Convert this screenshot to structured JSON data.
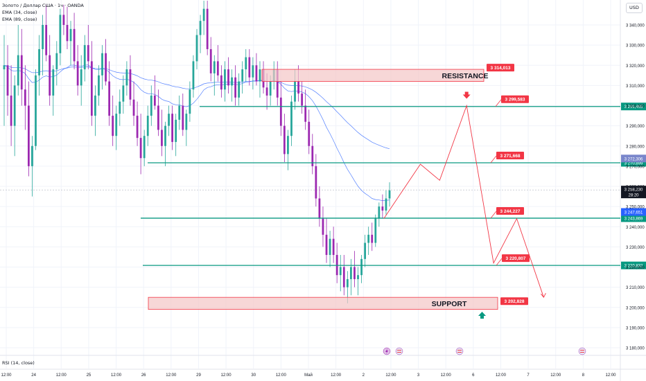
{
  "legend": {
    "symbol": "Золото / Доллар США · 1ч · OANDA",
    "ema34": "EMA (34, close)",
    "ema89": "EMA (89, close)"
  },
  "currency_button": "USD",
  "rsi_label": "RSI (14, close)",
  "chart_data": {
    "type": "candlestick",
    "y_axis": {
      "ticks": [
        3180,
        3190,
        3200,
        3210,
        3220,
        3230,
        3240,
        3250,
        3260,
        3270,
        3280,
        3290,
        3300,
        3310,
        3320,
        3330,
        3340
      ],
      "tick_labels": [
        "3 180,000",
        "3 190,000",
        "3 200,000",
        "3 210,000",
        "3 220,000",
        "3 230,000",
        "3 240,000",
        "3 250,000",
        "3 260,000",
        "3 270,000",
        "3 280,000",
        "3 290,000",
        "3 300,000",
        "3 310,000",
        "3 320,000",
        "3 330,000",
        "3 340,000"
      ]
    },
    "x_axis": {
      "labels": [
        "12:00",
        "24",
        "12:00",
        "25",
        "12:00",
        "26",
        "12:00",
        "29",
        "12:00",
        "30",
        "12:00",
        "Май",
        "12:00",
        "2",
        "12:00",
        "3",
        "12:00",
        "6",
        "12:00",
        "7",
        "12:00",
        "8",
        "12:00"
      ]
    },
    "levels": [
      {
        "price": 3299.583,
        "label": "3 299,583",
        "axis_label": "3 299,465"
      },
      {
        "price": 3271.668,
        "label": "3 271,668",
        "axis_label": "3 270,899"
      },
      {
        "price": 3244.227,
        "label": "3 244,227",
        "axis_label": "3 243,869"
      },
      {
        "price": 3220.807,
        "label": "3 220,807",
        "axis_label": "3 220,832"
      }
    ],
    "zones": [
      {
        "name": "RESISTANCE",
        "top": 3318,
        "bottom": 3312,
        "label": "3 314,013"
      },
      {
        "name": "SUPPORT",
        "top": 3205,
        "bottom": 3199,
        "label": "3 202,828"
      }
    ],
    "current_price": {
      "value": "3 258,230",
      "countdown": "28:20"
    },
    "ema34_axis": "3 247,651",
    "ema89_axis": "3 272,306",
    "colors": {
      "up": "#26a69a",
      "down": "#9c27b0",
      "level": "#089981",
      "zone_fill": "#f3c6c6",
      "zone_border": "#f23645",
      "label_bg": "#f23645",
      "ema": "#2962ff",
      "path": "#f23645",
      "level_axis_bg": "#089981",
      "ema34_axis_bg": "#2962ff",
      "ema89_axis_bg": "#7986cb"
    },
    "candles": [
      {
        "o": 3318,
        "h": 3335,
        "l": 3290,
        "c": 3320
      },
      {
        "o": 3320,
        "h": 3330,
        "l": 3295,
        "c": 3305
      },
      {
        "o": 3305,
        "h": 3320,
        "l": 3280,
        "c": 3290
      },
      {
        "o": 3290,
        "h": 3315,
        "l": 3275,
        "c": 3310
      },
      {
        "o": 3310,
        "h": 3340,
        "l": 3305,
        "c": 3325
      },
      {
        "o": 3325,
        "h": 3338,
        "l": 3300,
        "c": 3308
      },
      {
        "o": 3308,
        "h": 3320,
        "l": 3288,
        "c": 3300
      },
      {
        "o": 3300,
        "h": 3312,
        "l": 3265,
        "c": 3270
      },
      {
        "o": 3270,
        "h": 3285,
        "l": 3255,
        "c": 3280
      },
      {
        "o": 3280,
        "h": 3318,
        "l": 3278,
        "c": 3315
      },
      {
        "o": 3315,
        "h": 3335,
        "l": 3305,
        "c": 3328
      },
      {
        "o": 3328,
        "h": 3345,
        "l": 3315,
        "c": 3340
      },
      {
        "o": 3340,
        "h": 3350,
        "l": 3322,
        "c": 3325
      },
      {
        "o": 3325,
        "h": 3335,
        "l": 3300,
        "c": 3305
      },
      {
        "o": 3305,
        "h": 3320,
        "l": 3295,
        "c": 3318
      },
      {
        "o": 3318,
        "h": 3332,
        "l": 3310,
        "c": 3326
      },
      {
        "o": 3326,
        "h": 3348,
        "l": 3320,
        "c": 3345
      },
      {
        "o": 3345,
        "h": 3350,
        "l": 3335,
        "c": 3340
      },
      {
        "o": 3340,
        "h": 3349,
        "l": 3328,
        "c": 3332
      },
      {
        "o": 3332,
        "h": 3342,
        "l": 3320,
        "c": 3338
      },
      {
        "o": 3338,
        "h": 3346,
        "l": 3318,
        "c": 3322
      },
      {
        "o": 3322,
        "h": 3330,
        "l": 3305,
        "c": 3310
      },
      {
        "o": 3310,
        "h": 3325,
        "l": 3300,
        "c": 3318
      },
      {
        "o": 3318,
        "h": 3335,
        "l": 3312,
        "c": 3330
      },
      {
        "o": 3330,
        "h": 3340,
        "l": 3318,
        "c": 3322
      },
      {
        "o": 3322,
        "h": 3332,
        "l": 3290,
        "c": 3295
      },
      {
        "o": 3295,
        "h": 3310,
        "l": 3285,
        "c": 3305
      },
      {
        "o": 3305,
        "h": 3320,
        "l": 3300,
        "c": 3315
      },
      {
        "o": 3315,
        "h": 3330,
        "l": 3308,
        "c": 3326
      },
      {
        "o": 3326,
        "h": 3333,
        "l": 3310,
        "c": 3312
      },
      {
        "o": 3312,
        "h": 3322,
        "l": 3290,
        "c": 3295
      },
      {
        "o": 3295,
        "h": 3305,
        "l": 3280,
        "c": 3285
      },
      {
        "o": 3285,
        "h": 3300,
        "l": 3278,
        "c": 3296
      },
      {
        "o": 3296,
        "h": 3308,
        "l": 3290,
        "c": 3302
      },
      {
        "o": 3302,
        "h": 3315,
        "l": 3296,
        "c": 3310
      },
      {
        "o": 3310,
        "h": 3322,
        "l": 3305,
        "c": 3318
      },
      {
        "o": 3318,
        "h": 3325,
        "l": 3300,
        "c": 3303
      },
      {
        "o": 3303,
        "h": 3312,
        "l": 3290,
        "c": 3295
      },
      {
        "o": 3295,
        "h": 3302,
        "l": 3280,
        "c": 3284
      },
      {
        "o": 3284,
        "h": 3296,
        "l": 3266,
        "c": 3274
      },
      {
        "o": 3274,
        "h": 3288,
        "l": 3270,
        "c": 3285
      },
      {
        "o": 3285,
        "h": 3300,
        "l": 3280,
        "c": 3295
      },
      {
        "o": 3295,
        "h": 3310,
        "l": 3290,
        "c": 3305
      },
      {
        "o": 3305,
        "h": 3315,
        "l": 3298,
        "c": 3300
      },
      {
        "o": 3300,
        "h": 3308,
        "l": 3285,
        "c": 3288
      },
      {
        "o": 3288,
        "h": 3298,
        "l": 3275,
        "c": 3280
      },
      {
        "o": 3280,
        "h": 3292,
        "l": 3270,
        "c": 3290
      },
      {
        "o": 3290,
        "h": 3300,
        "l": 3285,
        "c": 3296
      },
      {
        "o": 3296,
        "h": 3300,
        "l": 3278,
        "c": 3282
      },
      {
        "o": 3282,
        "h": 3296,
        "l": 3275,
        "c": 3293
      },
      {
        "o": 3293,
        "h": 3305,
        "l": 3288,
        "c": 3300
      },
      {
        "o": 3300,
        "h": 3306,
        "l": 3285,
        "c": 3288
      },
      {
        "o": 3288,
        "h": 3298,
        "l": 3280,
        "c": 3296
      },
      {
        "o": 3296,
        "h": 3312,
        "l": 3292,
        "c": 3308
      },
      {
        "o": 3308,
        "h": 3325,
        "l": 3304,
        "c": 3322
      },
      {
        "o": 3322,
        "h": 3338,
        "l": 3318,
        "c": 3335
      },
      {
        "o": 3335,
        "h": 3345,
        "l": 3326,
        "c": 3342
      },
      {
        "o": 3342,
        "h": 3352,
        "l": 3335,
        "c": 3348
      },
      {
        "o": 3348,
        "h": 3352,
        "l": 3325,
        "c": 3328
      },
      {
        "o": 3328,
        "h": 3334,
        "l": 3312,
        "c": 3316
      },
      {
        "o": 3316,
        "h": 3325,
        "l": 3305,
        "c": 3322
      },
      {
        "o": 3322,
        "h": 3330,
        "l": 3312,
        "c": 3315
      },
      {
        "o": 3315,
        "h": 3320,
        "l": 3304,
        "c": 3308
      },
      {
        "o": 3308,
        "h": 3322,
        "l": 3302,
        "c": 3318
      },
      {
        "o": 3318,
        "h": 3324,
        "l": 3306,
        "c": 3310
      },
      {
        "o": 3310,
        "h": 3318,
        "l": 3302,
        "c": 3314
      },
      {
        "o": 3314,
        "h": 3320,
        "l": 3300,
        "c": 3304
      },
      {
        "o": 3304,
        "h": 3316,
        "l": 3300,
        "c": 3312
      },
      {
        "o": 3312,
        "h": 3322,
        "l": 3306,
        "c": 3318
      },
      {
        "o": 3318,
        "h": 3328,
        "l": 3312,
        "c": 3324
      },
      {
        "o": 3324,
        "h": 3328,
        "l": 3310,
        "c": 3314
      },
      {
        "o": 3314,
        "h": 3324,
        "l": 3308,
        "c": 3320
      },
      {
        "o": 3320,
        "h": 3326,
        "l": 3310,
        "c": 3312
      },
      {
        "o": 3312,
        "h": 3322,
        "l": 3304,
        "c": 3318
      },
      {
        "o": 3318,
        "h": 3322,
        "l": 3306,
        "c": 3309
      },
      {
        "o": 3309,
        "h": 3316,
        "l": 3298,
        "c": 3305
      },
      {
        "o": 3305,
        "h": 3315,
        "l": 3300,
        "c": 3312
      },
      {
        "o": 3312,
        "h": 3322,
        "l": 3308,
        "c": 3318
      },
      {
        "o": 3318,
        "h": 3322,
        "l": 3300,
        "c": 3304
      },
      {
        "o": 3304,
        "h": 3312,
        "l": 3285,
        "c": 3290
      },
      {
        "o": 3290,
        "h": 3296,
        "l": 3272,
        "c": 3276
      },
      {
        "o": 3276,
        "h": 3288,
        "l": 3268,
        "c": 3285
      },
      {
        "o": 3285,
        "h": 3305,
        "l": 3280,
        "c": 3302
      },
      {
        "o": 3302,
        "h": 3318,
        "l": 3298,
        "c": 3312
      },
      {
        "o": 3312,
        "h": 3320,
        "l": 3302,
        "c": 3306
      },
      {
        "o": 3306,
        "h": 3312,
        "l": 3296,
        "c": 3300
      },
      {
        "o": 3300,
        "h": 3308,
        "l": 3288,
        "c": 3292
      },
      {
        "o": 3292,
        "h": 3298,
        "l": 3276,
        "c": 3280
      },
      {
        "o": 3280,
        "h": 3286,
        "l": 3266,
        "c": 3270
      },
      {
        "o": 3270,
        "h": 3276,
        "l": 3250,
        "c": 3254
      },
      {
        "o": 3254,
        "h": 3260,
        "l": 3240,
        "c": 3244
      },
      {
        "o": 3244,
        "h": 3250,
        "l": 3230,
        "c": 3236
      },
      {
        "o": 3236,
        "h": 3244,
        "l": 3222,
        "c": 3226
      },
      {
        "o": 3226,
        "h": 3238,
        "l": 3220,
        "c": 3234
      },
      {
        "o": 3234,
        "h": 3240,
        "l": 3222,
        "c": 3226
      },
      {
        "o": 3226,
        "h": 3232,
        "l": 3212,
        "c": 3216
      },
      {
        "o": 3216,
        "h": 3226,
        "l": 3208,
        "c": 3220
      },
      {
        "o": 3220,
        "h": 3226,
        "l": 3206,
        "c": 3210
      },
      {
        "o": 3210,
        "h": 3218,
        "l": 3202,
        "c": 3214
      },
      {
        "o": 3214,
        "h": 3224,
        "l": 3206,
        "c": 3220
      },
      {
        "o": 3220,
        "h": 3228,
        "l": 3210,
        "c": 3214
      },
      {
        "o": 3214,
        "h": 3220,
        "l": 3206,
        "c": 3216
      },
      {
        "o": 3216,
        "h": 3226,
        "l": 3212,
        "c": 3224
      },
      {
        "o": 3224,
        "h": 3236,
        "l": 3220,
        "c": 3232
      },
      {
        "o": 3232,
        "h": 3240,
        "l": 3226,
        "c": 3236
      },
      {
        "o": 3236,
        "h": 3242,
        "l": 3228,
        "c": 3232
      },
      {
        "o": 3232,
        "h": 3246,
        "l": 3230,
        "c": 3244
      },
      {
        "o": 3244,
        "h": 3252,
        "l": 3240,
        "c": 3250
      },
      {
        "o": 3250,
        "h": 3256,
        "l": 3244,
        "c": 3248
      },
      {
        "o": 3248,
        "h": 3258,
        "l": 3246,
        "c": 3254
      },
      {
        "o": 3254,
        "h": 3262,
        "l": 3250,
        "c": 3258
      }
    ],
    "projection": [
      {
        "t": 0.985,
        "p": 3244
      },
      {
        "t": 1.08,
        "p": 3271
      },
      {
        "t": 1.13,
        "p": 3263
      },
      {
        "t": 1.2,
        "p": 3300
      },
      {
        "t": 1.27,
        "p": 3222
      },
      {
        "t": 1.33,
        "p": 3244
      },
      {
        "t": 1.4,
        "p": 3205
      }
    ]
  }
}
